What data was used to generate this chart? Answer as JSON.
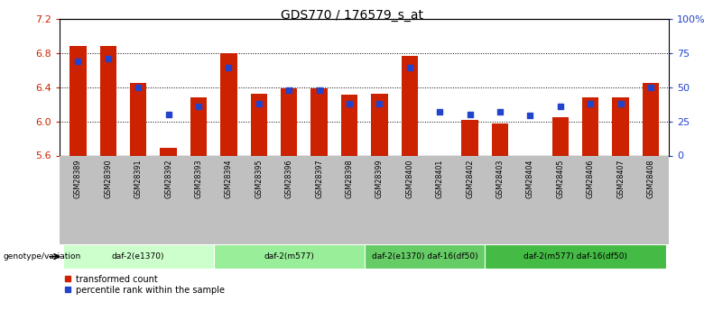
{
  "title": "GDS770 / 176579_s_at",
  "samples": [
    "GSM28389",
    "GSM28390",
    "GSM28391",
    "GSM28392",
    "GSM28393",
    "GSM28394",
    "GSM28395",
    "GSM28396",
    "GSM28397",
    "GSM28398",
    "GSM28399",
    "GSM28400",
    "GSM28401",
    "GSM28402",
    "GSM28403",
    "GSM28404",
    "GSM28405",
    "GSM28406",
    "GSM28407",
    "GSM28408"
  ],
  "bar_values": [
    6.88,
    6.88,
    6.45,
    5.69,
    6.28,
    6.8,
    6.32,
    6.39,
    6.39,
    6.31,
    6.32,
    6.76,
    5.57,
    6.02,
    5.97,
    5.57,
    6.05,
    6.28,
    6.28,
    6.45
  ],
  "dot_values": [
    69,
    71,
    50,
    30,
    36,
    64,
    38,
    48,
    48,
    38,
    38,
    64,
    32,
    30,
    32,
    29,
    36,
    38,
    38,
    50
  ],
  "ymin": 5.6,
  "ymax": 7.2,
  "yticks": [
    5.6,
    6.0,
    6.4,
    6.8,
    7.2
  ],
  "y2ticks": [
    0,
    25,
    50,
    75,
    100
  ],
  "y2labels": [
    "0",
    "25",
    "50",
    "75",
    "100%"
  ],
  "bar_color": "#cc2200",
  "dot_color": "#2244cc",
  "bar_width": 0.55,
  "groups": [
    {
      "label": "daf-2(e1370)",
      "start": 0,
      "end": 5,
      "color": "#ccffcc"
    },
    {
      "label": "daf-2(m577)",
      "start": 5,
      "end": 10,
      "color": "#99ee99"
    },
    {
      "label": "daf-2(e1370) daf-16(df50)",
      "start": 10,
      "end": 14,
      "color": "#66cc66"
    },
    {
      "label": "daf-2(m577) daf-16(df50)",
      "start": 14,
      "end": 20,
      "color": "#44bb44"
    }
  ],
  "genotype_label": "genotype/variation",
  "legend_bar": "transformed count",
  "legend_dot": "percentile rank within the sample",
  "tick_label_bg": "#c0c0c0",
  "grid_ticks": [
    6.0,
    6.4,
    6.8
  ]
}
